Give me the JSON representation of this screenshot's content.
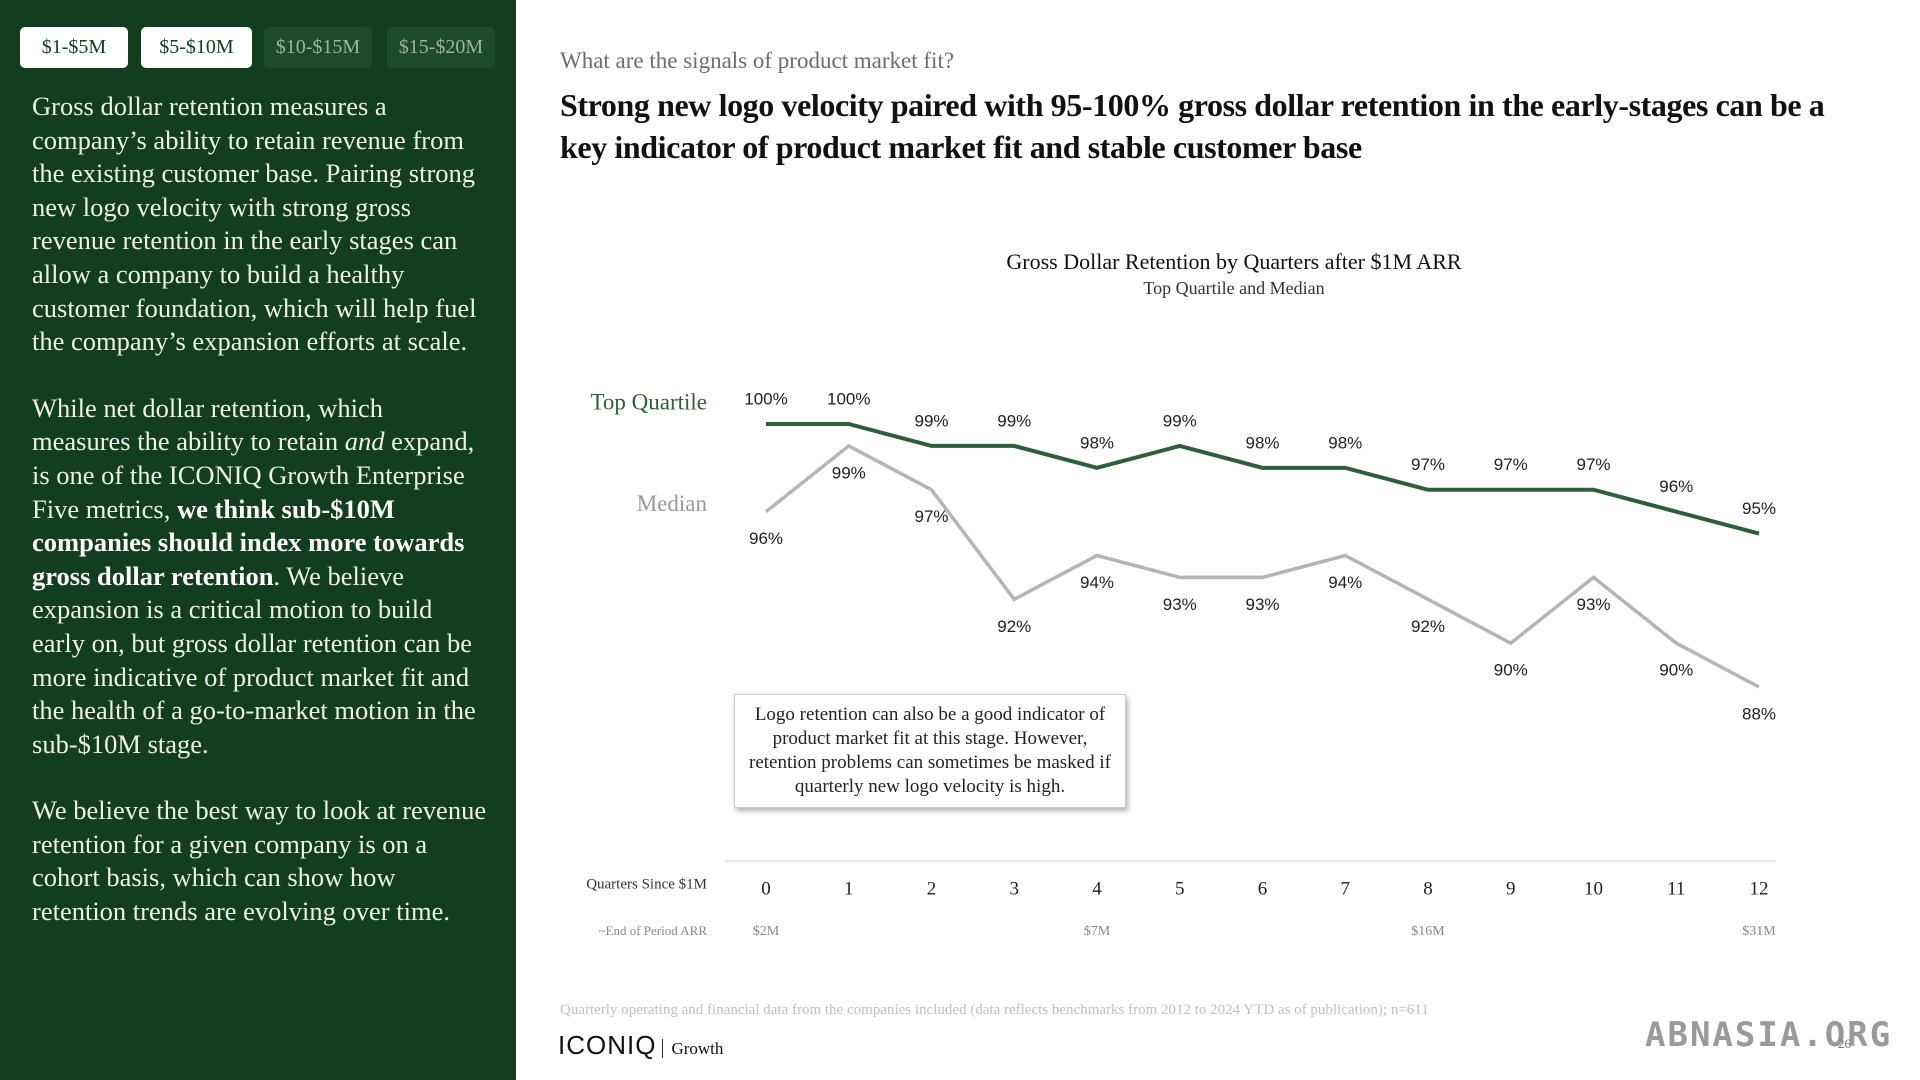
{
  "tabs": [
    "$1-$5M",
    "$5-$10M",
    "$10-$15M",
    "$15-$20M"
  ],
  "sidebar": {
    "paragraphs": [
      [
        {
          "text": "Gross dollar retention measures a company’s ability to retain revenue from the existing customer base. Pairing strong new logo velocity with strong gross revenue retention in the early stages can allow a company to build a healthy customer foundation, which will help fuel the company’s expansion efforts at scale."
        }
      ],
      [
        {
          "text": "While net dollar retention, which measures the ability to retain "
        },
        {
          "text": "and",
          "italic": true
        },
        {
          "text": " expand, is one of the ICONIQ Growth Enterprise Five metrics, "
        },
        {
          "text": "we think sub-$10M companies should index more towards gross dollar retention",
          "bold": true
        },
        {
          "text": ". We believe expansion is a critical motion to build early on, but gross dollar retention can be more indicative of product market fit and the health of a go-to-market motion in the sub-$10M stage."
        }
      ],
      [
        {
          "text": "We believe the best way to look at revenue retention for a given company is on a cohort basis, which can show how retention trends are evolving over time."
        }
      ]
    ]
  },
  "header": {
    "question": "What are the signals of product market fit?",
    "headline": "Strong new logo velocity paired with 95-100% gross dollar retention in the early-stages can be a key indicator of product market fit and stable customer base"
  },
  "chart_data": {
    "type": "line",
    "title": "Gross Dollar Retention by Quarters after $1M ARR",
    "subtitle": "Top Quartile and Median",
    "x_label": "Quarters Since $1M",
    "categories": [
      "0",
      "1",
      "2",
      "3",
      "4",
      "5",
      "6",
      "7",
      "8",
      "9",
      "10",
      "11",
      "12"
    ],
    "secondary_label": "~End of Period ARR",
    "secondary_categories": [
      "$2M",
      null,
      null,
      null,
      "$7M",
      null,
      null,
      null,
      "$16M",
      null,
      null,
      null,
      "$31M"
    ],
    "series": [
      {
        "name": "Top Quartile",
        "color": "#2e5e3a",
        "values": [
          100,
          100,
          99,
          99,
          98,
          99,
          98,
          98,
          97,
          97,
          97,
          96,
          95
        ],
        "value_labels": [
          "100%",
          "100%",
          "99%",
          "99%",
          "98%",
          "99%",
          "98%",
          "98%",
          "97%",
          "97%",
          "97%",
          "96%",
          "95%"
        ]
      },
      {
        "name": "Median",
        "color": "#b5b5b5",
        "values": [
          96,
          99,
          97,
          92,
          94,
          93,
          93,
          94,
          92,
          90,
          93,
          90,
          88
        ],
        "value_labels": [
          "96%",
          "99%",
          "97%",
          "92%",
          "94%",
          "93%",
          "93%",
          "94%",
          "92%",
          "90%",
          "93%",
          "90%",
          "88%"
        ]
      }
    ],
    "annotation": "Logo retention can also be a good indicator of product market fit at this stage. However, retention problems can sometimes be masked if quarterly new logo velocity is high."
  },
  "footnote": "Quarterly operating and financial data from the companies included (data reflects benchmarks from 2012 to 2024 YTD as of publication); n=611",
  "brand": {
    "name": "ICONIQ",
    "unit": "Growth"
  },
  "page_number": "26",
  "watermark": "ABNASIA.ORG"
}
